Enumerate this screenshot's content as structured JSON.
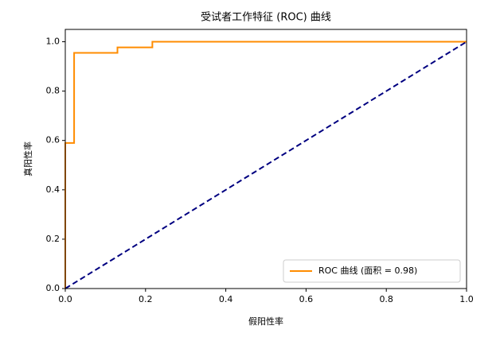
{
  "chart_data": {
    "type": "line",
    "title": "受试者工作特征 (ROC) 曲线",
    "x_label": "假阳性率",
    "y_label": "真阳性率",
    "xlim": [
      0,
      1
    ],
    "ylim": [
      0,
      1.05
    ],
    "xticks": [
      {
        "value": 0,
        "label": "0.0"
      },
      0.2,
      0.4,
      0.6,
      0.8,
      {
        "value": 1,
        "label": "1.0"
      }
    ],
    "yticks": [
      {
        "value": 0,
        "label": "0.0"
      },
      0.2,
      0.4,
      0.6,
      0.8,
      {
        "value": 1,
        "label": "1.0"
      }
    ],
    "legend": "lower right",
    "series": [
      {
        "name": "ROC 曲线 (面积 = 0.98)",
        "color": "#ff8c00",
        "style": "solid",
        "x": [
          0,
          0,
          0.022,
          0.022,
          0.13,
          0.13,
          0.217,
          0.217,
          1
        ],
        "values": [
          0,
          0.59,
          0.59,
          0.955,
          0.955,
          0.977,
          0.977,
          1,
          1
        ]
      },
      {
        "color": "#000080",
        "style": "dashed",
        "x": [
          0,
          1
        ],
        "values": [
          0,
          1
        ]
      }
    ]
  }
}
